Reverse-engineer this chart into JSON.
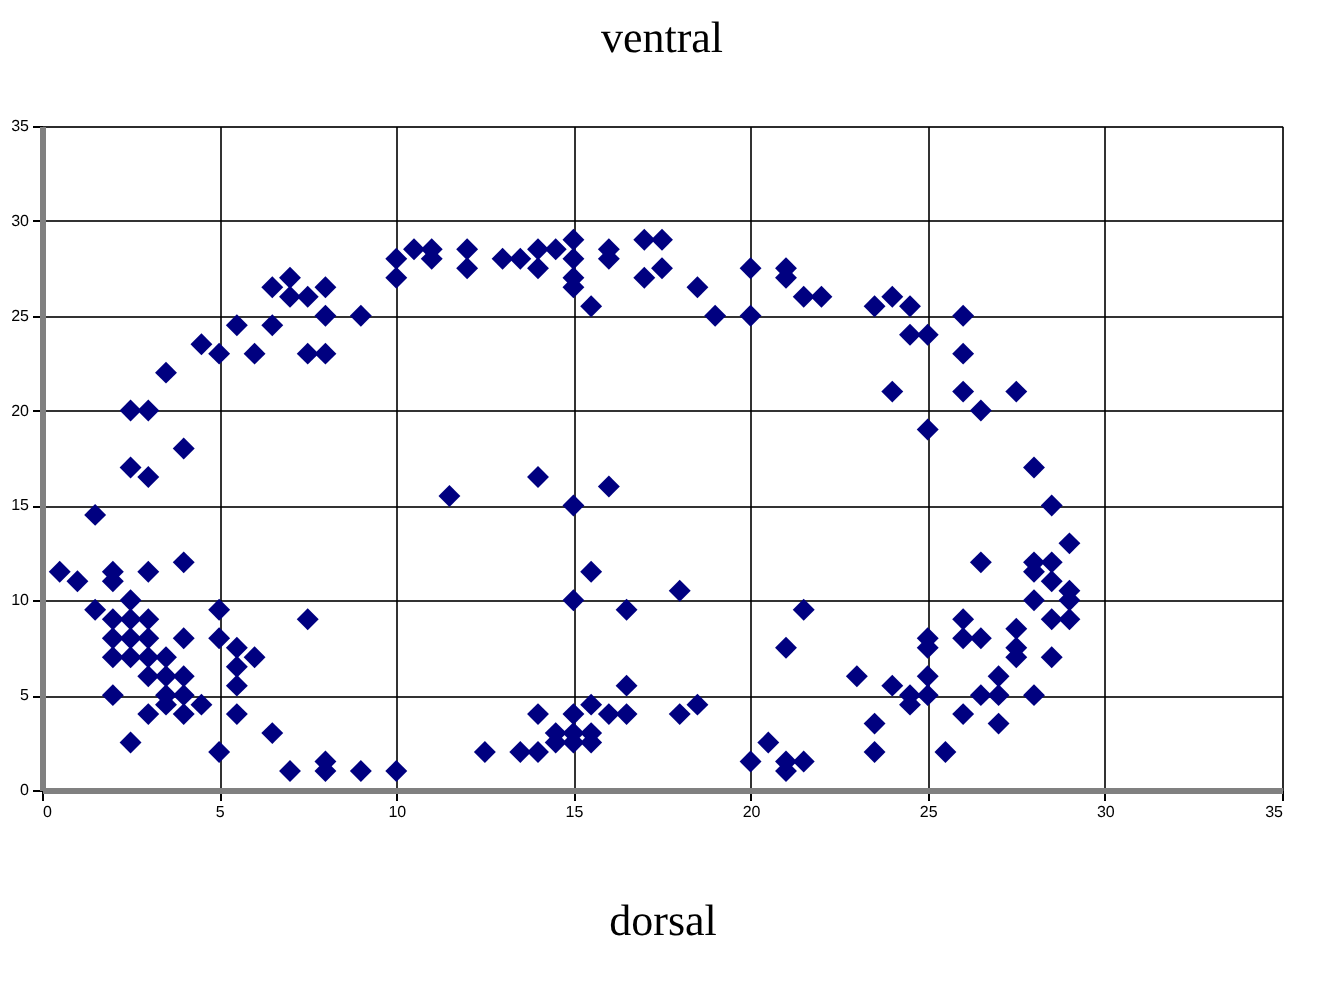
{
  "chart_data": {
    "type": "scatter",
    "title": "ventral",
    "xlabel": "dorsal",
    "xlim": [
      0,
      35
    ],
    "xticks": [
      0,
      5,
      10,
      15,
      20,
      25,
      30,
      35
    ],
    "ylim": [
      0,
      35
    ],
    "yticks": [
      0,
      5,
      10,
      15,
      20,
      25,
      30,
      35
    ],
    "grid": true,
    "marker": "diamond",
    "series": [
      {
        "color": "#000080",
        "x": [
          0.5,
          1,
          1.5,
          1.5,
          2,
          2,
          2,
          2,
          2,
          2,
          2.5,
          2.5,
          2.5,
          2.5,
          2.5,
          2.5,
          2.5,
          3,
          3,
          3,
          3,
          3,
          3,
          3,
          3,
          3.5,
          3.5,
          3.5,
          3.5,
          3.5,
          4,
          4,
          4,
          4,
          4,
          4,
          4.5,
          4.5,
          5,
          5,
          5,
          5,
          5.5,
          5.5,
          5.5,
          5.5,
          5.5,
          6,
          6,
          6.5,
          6.5,
          6.5,
          7,
          7,
          7,
          7.5,
          7.5,
          7.5,
          8,
          8,
          8,
          8,
          8,
          9,
          9,
          10,
          10,
          10,
          10.5,
          11,
          11,
          11.5,
          12,
          12,
          12.5,
          13,
          13.5,
          13.5,
          14,
          14,
          14,
          14,
          14,
          14.5,
          14.5,
          14.5,
          15,
          15,
          15,
          15,
          15,
          15,
          15,
          15,
          15,
          15.5,
          15.5,
          15.5,
          15.5,
          15.5,
          16,
          16,
          16,
          16,
          16.5,
          16.5,
          16.5,
          17,
          17,
          17.5,
          17.5,
          18,
          18,
          18.5,
          18.5,
          19,
          20,
          20,
          20,
          20.5,
          21,
          21,
          21,
          21,
          21,
          21.5,
          21.5,
          21.5,
          22,
          23,
          23.5,
          23.5,
          23.5,
          24,
          24,
          24,
          24.5,
          24.5,
          24.5,
          24.5,
          25,
          25,
          25,
          25,
          25,
          25,
          25.5,
          26,
          26,
          26,
          26,
          26,
          26,
          26.5,
          26.5,
          26.5,
          26.5,
          27,
          27,
          27,
          27.5,
          27.5,
          27.5,
          27.5,
          28,
          28,
          28,
          28,
          28,
          28.5,
          28.5,
          28.5,
          28.5,
          28.5,
          29,
          29,
          29,
          29
        ],
        "values": [
          11.5,
          11,
          14.5,
          9.5,
          11.5,
          11,
          9,
          8,
          7,
          5,
          20,
          17,
          10,
          9,
          8,
          7,
          2.5,
          20,
          16.5,
          11.5,
          9,
          8,
          7,
          6,
          4,
          22,
          7,
          6,
          5,
          4.5,
          18,
          12,
          8,
          6,
          5,
          4,
          23.5,
          4.5,
          23,
          9.5,
          8,
          2,
          24.5,
          7.5,
          6.5,
          5.5,
          4,
          23,
          7,
          26.5,
          24.5,
          3,
          27,
          26,
          1,
          26,
          23,
          9,
          26.5,
          25,
          23,
          1.5,
          1,
          25,
          1,
          28,
          27,
          1,
          28.5,
          28.5,
          28,
          15.5,
          28.5,
          27.5,
          2,
          28,
          28,
          2,
          28.5,
          27.5,
          16.5,
          4,
          2,
          28.5,
          3,
          2.5,
          29,
          28,
          27,
          26.5,
          15,
          10,
          4,
          3,
          2.5,
          25.5,
          11.5,
          4.5,
          3,
          2.5,
          28.5,
          28,
          16,
          4,
          9.5,
          5.5,
          4,
          29,
          27,
          29,
          27.5,
          10.5,
          4,
          26.5,
          4.5,
          25,
          27.5,
          25,
          1.5,
          2.5,
          27.5,
          27,
          7.5,
          1.5,
          1,
          26,
          9.5,
          1.5,
          26,
          6,
          25.5,
          3.5,
          2,
          26,
          21,
          5.5,
          25.5,
          24,
          5,
          4.5,
          24,
          19,
          8,
          7.5,
          6,
          5,
          2,
          25,
          23,
          21,
          9,
          8,
          4,
          20,
          12,
          8,
          5,
          6,
          5,
          3.5,
          21,
          8.5,
          7.5,
          7,
          17,
          12,
          11.5,
          10,
          5,
          15,
          12,
          11,
          9,
          7,
          13,
          10.5,
          10,
          9
        ]
      }
    ]
  }
}
